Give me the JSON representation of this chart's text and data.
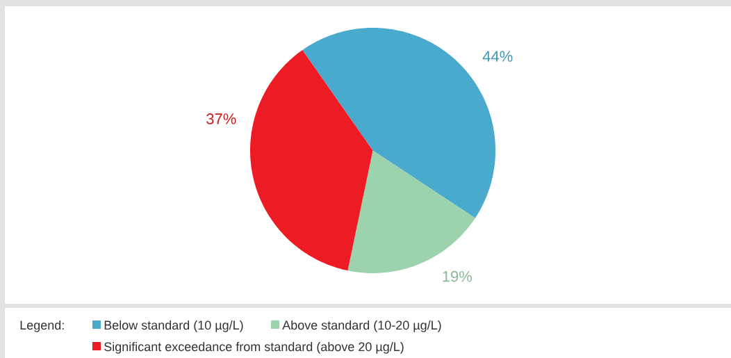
{
  "chart_data": {
    "type": "pie",
    "categories": [
      "Below standard (10 µg/L)",
      "Above standard (10-20 µg/L)",
      "Significant exceedance from standard (above 20 µg/L)"
    ],
    "values": [
      44,
      19,
      37
    ],
    "colors": [
      "#4aaacd",
      "#9cd3ad",
      "#ed1c24"
    ],
    "value_labels": [
      "44%",
      "19%",
      "37%"
    ],
    "legend": "bottom",
    "legend_title": "Legend:"
  }
}
